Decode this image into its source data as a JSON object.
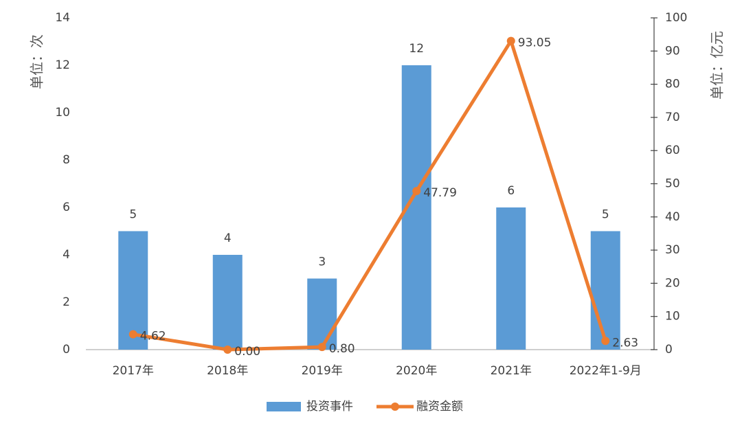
{
  "chart_data": {
    "type": "bar",
    "categories": [
      "2017年",
      "2018年",
      "2019年",
      "2020年",
      "2021年",
      "2022年1-9月"
    ],
    "series": [
      {
        "name": "投资事件",
        "type": "bar",
        "color": "#5b9bd5",
        "values": [
          5,
          4,
          3,
          12,
          6,
          5
        ]
      },
      {
        "name": "融资金额",
        "type": "line",
        "axis": "y2",
        "color": "#ed7d31",
        "values": [
          4.62,
          0,
          0.8,
          47.79,
          93.05,
          2.63
        ],
        "value_labels": [
          "4.62",
          "0.00",
          "0.80",
          "47.79",
          "93.05",
          "2.63"
        ]
      }
    ],
    "y_label": "单位：次",
    "y2_label": "单位：亿元",
    "ylim": [
      0,
      14
    ],
    "yticks": [
      0,
      2,
      4,
      6,
      8,
      10,
      12,
      14
    ],
    "y2lim": [
      0,
      100
    ],
    "y2ticks": [
      0,
      10,
      20,
      30,
      40,
      50,
      60,
      70,
      80,
      90,
      100
    ],
    "grid": false
  }
}
